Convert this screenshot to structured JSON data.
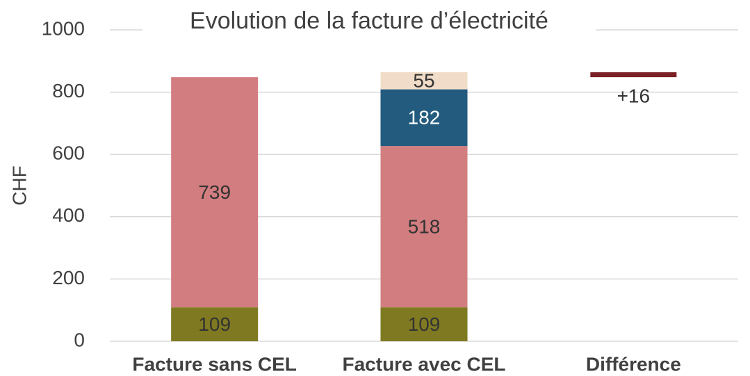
{
  "chart_data": {
    "type": "bar",
    "stacked": true,
    "title": "Evolution de la facture d’électricité",
    "y_label": "CHF",
    "categories": [
      "Facture sans CEL",
      "Facture avec CEL",
      "Différence"
    ],
    "series": [
      {
        "color": "#7f7a22",
        "label_color": "#333333",
        "values": [
          109,
          109,
          null
        ]
      },
      {
        "color": "#d27d80",
        "label_color": "#333333",
        "values": [
          739,
          518,
          null
        ]
      },
      {
        "color": "#235b7e",
        "label_color": "#ffffff",
        "values": [
          null,
          182,
          null
        ]
      },
      {
        "color": "#f0dcc8",
        "label_color": "#333333",
        "values": [
          null,
          55,
          null
        ]
      },
      {
        "color": "#7b2025",
        "label_color": "#333333",
        "difference": true,
        "values": [
          null,
          null,
          16
        ],
        "value_labels": [
          null,
          null,
          "+16"
        ]
      }
    ],
    "ylim": [
      0,
      1000
    ],
    "yticks": [
      0,
      200,
      400,
      600,
      800,
      1000
    ],
    "grid": true
  }
}
